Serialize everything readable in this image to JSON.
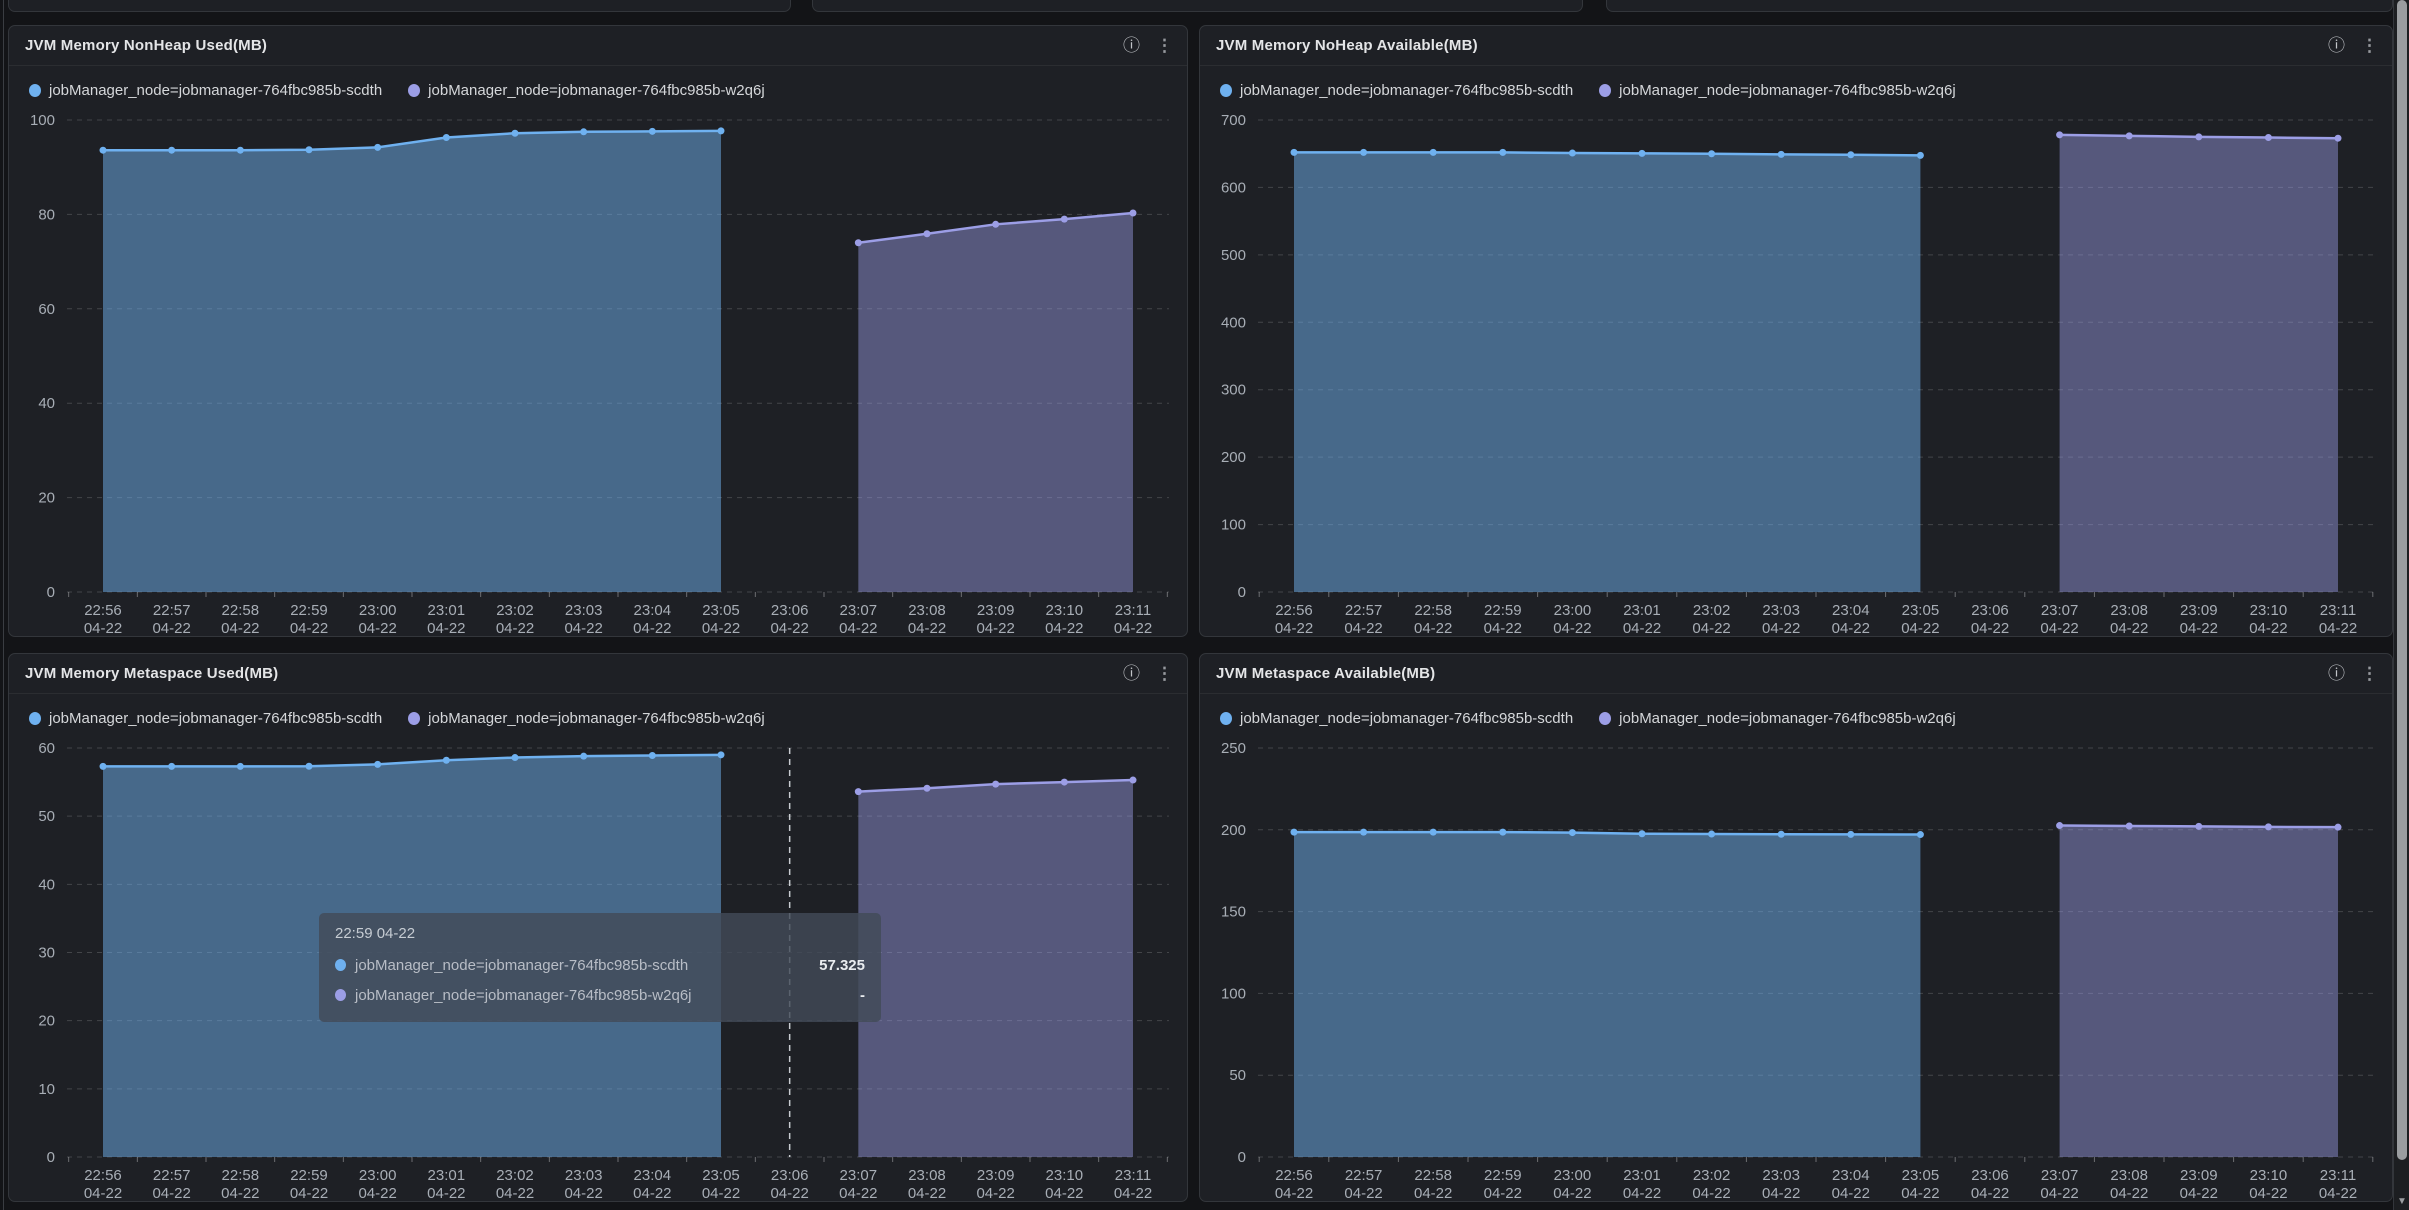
{
  "colors": {
    "series1_line": "#6FB1F0",
    "series1_fill": "rgba(111,177,240,0.50)",
    "series2_line": "#9C9EE6",
    "series2_fill": "rgba(156,158,230,0.45)",
    "grid": "rgba(255,255,255,0.17)",
    "axis_text": "#a8aeb6",
    "crosshair": "rgba(230,234,238,0.85)"
  },
  "icons": {
    "info": "ⓘ",
    "menu": "⋮",
    "scroll_down": "▼"
  },
  "legend": {
    "series1": "jobManager_node=jobmanager-764fbc985b-scdth",
    "series2": "jobManager_node=jobmanager-764fbc985b-w2q6j"
  },
  "panels": [
    {
      "title": "JVM Memory NonHeap Used(MB)"
    },
    {
      "title": "JVM Memory NoHeap Available(MB)"
    },
    {
      "title": "JVM Memory Metaspace Used(MB)"
    },
    {
      "title": "JVM Metaspace Available(MB)"
    }
  ],
  "tooltip": {
    "header": "22:59 04-22",
    "rows": [
      {
        "label": "jobManager_node=jobmanager-764fbc985b-scdth",
        "value": "57.325"
      },
      {
        "label": "jobManager_node=jobmanager-764fbc985b-w2q6j",
        "value": "-"
      }
    ]
  },
  "chart_data": [
    {
      "type": "area",
      "title": "JVM Memory NonHeap Used(MB)",
      "x": [
        "22:56",
        "22:57",
        "22:58",
        "22:59",
        "23:00",
        "23:01",
        "23:02",
        "23:03",
        "23:04",
        "23:05",
        "23:06",
        "23:07",
        "23:08",
        "23:09",
        "23:10",
        "23:11"
      ],
      "x_date": "04-22",
      "ylim": [
        0,
        100
      ],
      "yticks": [
        0,
        20,
        40,
        60,
        80,
        100
      ],
      "grid": "dashed",
      "legend_position": "top-left",
      "series": [
        {
          "name": "jobManager_node=jobmanager-764fbc985b-scdth",
          "values": [
            93.6,
            93.6,
            93.6,
            93.7,
            94.2,
            96.3,
            97.2,
            97.5,
            97.6,
            97.7,
            null,
            null,
            null,
            null,
            null,
            null
          ]
        },
        {
          "name": "jobManager_node=jobmanager-764fbc985b-w2q6j",
          "values": [
            null,
            null,
            null,
            null,
            null,
            null,
            null,
            null,
            null,
            null,
            null,
            74.0,
            75.9,
            77.9,
            79.0,
            80.3
          ]
        }
      ]
    },
    {
      "type": "area",
      "title": "JVM Memory NoHeap Available(MB)",
      "x": [
        "22:56",
        "22:57",
        "22:58",
        "22:59",
        "23:00",
        "23:01",
        "23:02",
        "23:03",
        "23:04",
        "23:05",
        "23:06",
        "23:07",
        "23:08",
        "23:09",
        "23:10",
        "23:11"
      ],
      "x_date": "04-22",
      "ylim": [
        0,
        700
      ],
      "yticks": [
        0,
        100,
        200,
        300,
        400,
        500,
        600,
        700
      ],
      "grid": "dashed",
      "legend_position": "top-left",
      "series": [
        {
          "name": "jobManager_node=jobmanager-764fbc985b-scdth",
          "values": [
            652,
            652,
            652,
            652,
            651,
            650.5,
            650,
            649,
            648.5,
            647.5,
            null,
            null,
            null,
            null,
            null,
            null
          ]
        },
        {
          "name": "jobManager_node=jobmanager-764fbc985b-w2q6j",
          "values": [
            null,
            null,
            null,
            null,
            null,
            null,
            null,
            null,
            null,
            null,
            null,
            678,
            676.5,
            675,
            674,
            673
          ]
        }
      ]
    },
    {
      "type": "area",
      "title": "JVM Memory Metaspace Used(MB)",
      "x": [
        "22:56",
        "22:57",
        "22:58",
        "22:59",
        "23:00",
        "23:01",
        "23:02",
        "23:03",
        "23:04",
        "23:05",
        "23:06",
        "23:07",
        "23:08",
        "23:09",
        "23:10",
        "23:11"
      ],
      "x_date": "04-22",
      "ylim": [
        0,
        60
      ],
      "yticks": [
        0,
        10,
        20,
        30,
        40,
        50,
        60
      ],
      "grid": "dashed",
      "legend_position": "top-left",
      "crosshair_index": 10,
      "hover_point": {
        "x": "22:59 04-22",
        "series1_value": 57.325,
        "series2_value": null
      },
      "series": [
        {
          "name": "jobManager_node=jobmanager-764fbc985b-scdth",
          "values": [
            57.3,
            57.3,
            57.3,
            57.325,
            57.6,
            58.2,
            58.6,
            58.8,
            58.9,
            59.0,
            null,
            null,
            null,
            null,
            null,
            null
          ]
        },
        {
          "name": "jobManager_node=jobmanager-764fbc985b-w2q6j",
          "values": [
            null,
            null,
            null,
            null,
            null,
            null,
            null,
            null,
            null,
            null,
            null,
            53.6,
            54.1,
            54.7,
            55.0,
            55.3
          ]
        }
      ]
    },
    {
      "type": "area",
      "title": "JVM Metaspace Available(MB)",
      "x": [
        "22:56",
        "22:57",
        "22:58",
        "22:59",
        "23:00",
        "23:01",
        "23:02",
        "23:03",
        "23:04",
        "23:05",
        "23:06",
        "23:07",
        "23:08",
        "23:09",
        "23:10",
        "23:11"
      ],
      "x_date": "04-22",
      "ylim": [
        0,
        250
      ],
      "yticks": [
        0,
        50,
        100,
        150,
        200,
        250
      ],
      "grid": "dashed",
      "legend_position": "top-left",
      "series": [
        {
          "name": "jobManager_node=jobmanager-764fbc985b-scdth",
          "values": [
            198.6,
            198.6,
            198.6,
            198.6,
            198.3,
            197.6,
            197.4,
            197.3,
            197.2,
            197.1,
            null,
            null,
            null,
            null,
            null,
            null
          ]
        },
        {
          "name": "jobManager_node=jobmanager-764fbc985b-w2q6j",
          "values": [
            null,
            null,
            null,
            null,
            null,
            null,
            null,
            null,
            null,
            null,
            null,
            202.6,
            202.3,
            202.1,
            201.8,
            201.6
          ]
        }
      ]
    }
  ]
}
